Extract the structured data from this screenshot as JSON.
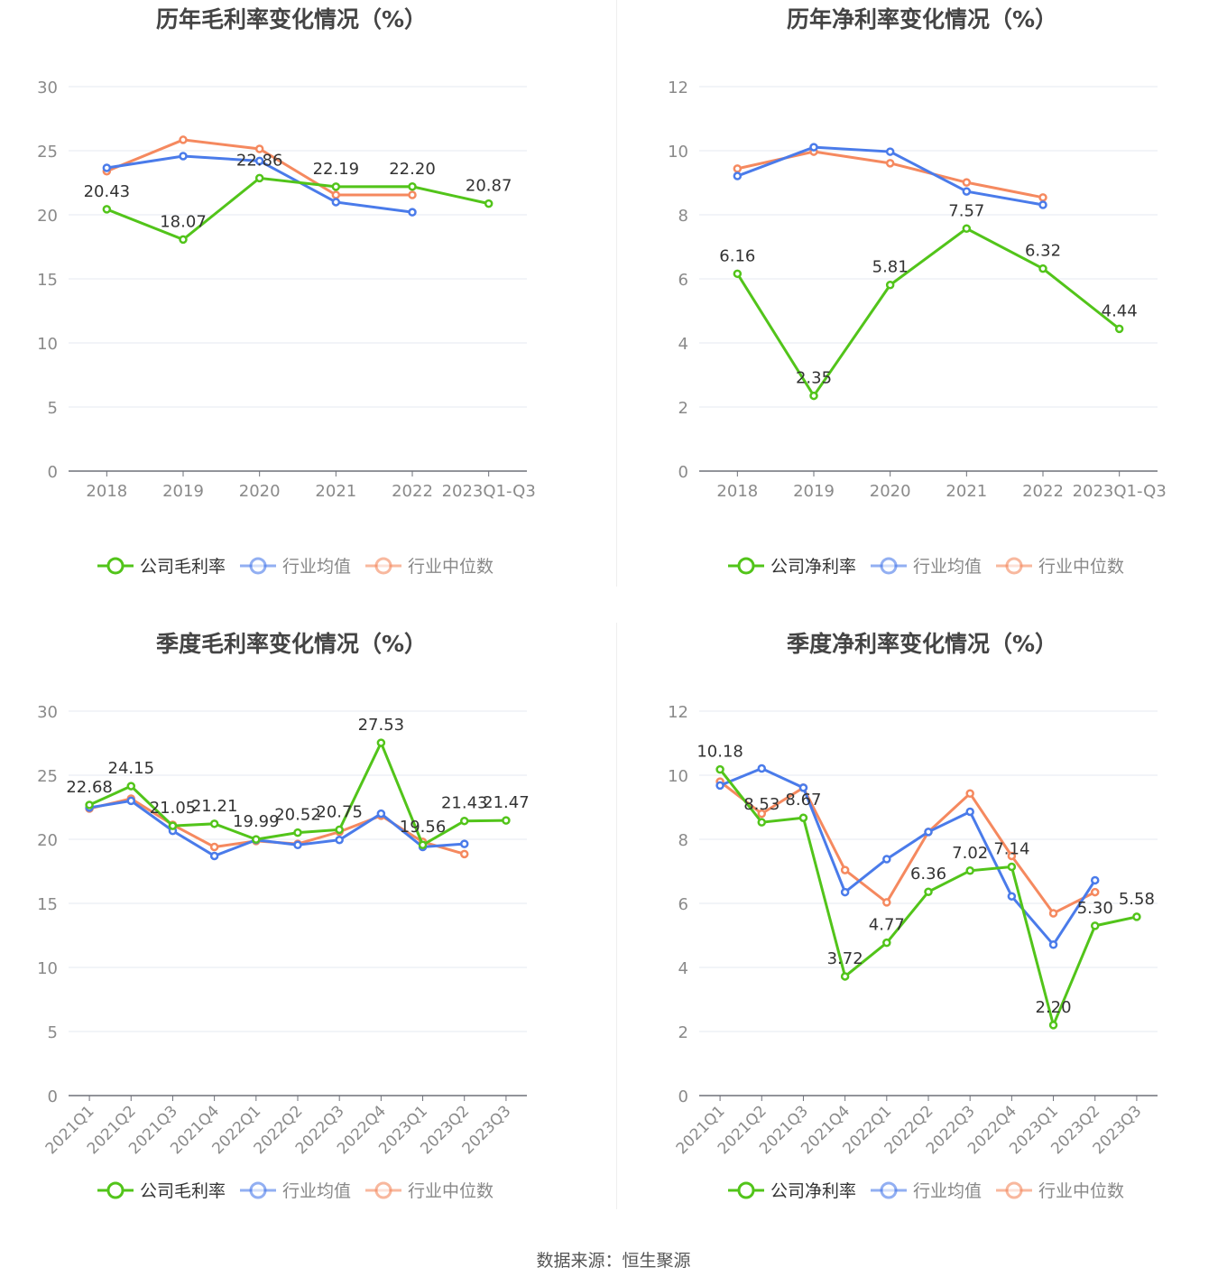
{
  "colors": {
    "company": "#52c41a",
    "mean": "#4a7bea",
    "median": "#f5895f",
    "grid": "#e6e8f0",
    "axis": "#6e7079",
    "tick": "#8a8a8a"
  },
  "source": "数据来源：恒生聚源",
  "chart_data": [
    {
      "type": "line",
      "title": "历年毛利率变化情况（%）",
      "ylim": [
        0,
        30
      ],
      "yticks": [
        0,
        5,
        10,
        15,
        20,
        25,
        30
      ],
      "rotate_x": false,
      "categories": [
        "2018",
        "2019",
        "2020",
        "2021",
        "2022",
        "2023Q1-Q3"
      ],
      "series": [
        {
          "name": "公司毛利率",
          "key": "company",
          "values": [
            20.43,
            18.07,
            22.86,
            22.19,
            22.2,
            20.87
          ],
          "labels": [
            "20.43",
            "18.07",
            "22.86",
            "22.19",
            "22.20",
            "20.87"
          ]
        },
        {
          "name": "行业均值",
          "key": "mean",
          "values": [
            23.66,
            24.58,
            24.2,
            20.99,
            20.2,
            null
          ]
        },
        {
          "name": "行业中位数",
          "key": "median",
          "values": [
            23.4,
            25.85,
            25.14,
            21.55,
            21.55,
            null
          ]
        }
      ]
    },
    {
      "type": "line",
      "title": "历年净利率变化情况（%）",
      "ylim": [
        0,
        12
      ],
      "yticks": [
        0,
        2,
        4,
        6,
        8,
        10,
        12
      ],
      "rotate_x": false,
      "categories": [
        "2018",
        "2019",
        "2020",
        "2021",
        "2022",
        "2023Q1-Q3"
      ],
      "series": [
        {
          "name": "公司净利率",
          "key": "company",
          "values": [
            6.16,
            2.35,
            5.81,
            7.57,
            6.32,
            4.44
          ],
          "labels": [
            "6.16",
            "2.35",
            "5.81",
            "7.57",
            "6.32",
            "4.44"
          ]
        },
        {
          "name": "行业均值",
          "key": "mean",
          "values": [
            9.21,
            10.11,
            9.97,
            8.73,
            8.31,
            null
          ]
        },
        {
          "name": "行业中位数",
          "key": "median",
          "values": [
            9.44,
            9.97,
            9.61,
            9.01,
            8.54,
            null
          ]
        }
      ]
    },
    {
      "type": "line",
      "title": "季度毛利率变化情况（%）",
      "ylim": [
        0,
        30
      ],
      "yticks": [
        0,
        5,
        10,
        15,
        20,
        25,
        30
      ],
      "rotate_x": true,
      "categories": [
        "2021Q1",
        "2021Q2",
        "2021Q3",
        "2021Q4",
        "2022Q1",
        "2022Q2",
        "2022Q3",
        "2022Q4",
        "2023Q1",
        "2023Q2",
        "2023Q3"
      ],
      "series": [
        {
          "name": "公司毛利率",
          "key": "company",
          "values": [
            22.68,
            24.15,
            21.05,
            21.21,
            19.99,
            20.52,
            20.75,
            27.53,
            19.56,
            21.43,
            21.47
          ],
          "labels": [
            "22.68",
            "24.15",
            "21.05",
            "21.21",
            "19.99",
            "20.52",
            "20.75",
            "27.53",
            "19.56",
            "21.43",
            "21.47"
          ]
        },
        {
          "name": "行业均值",
          "key": "mean",
          "values": [
            22.47,
            23.0,
            20.66,
            18.7,
            19.95,
            19.56,
            19.95,
            22.0,
            19.4,
            19.64,
            null
          ]
        },
        {
          "name": "行业中位数",
          "key": "median",
          "values": [
            22.39,
            23.17,
            21.13,
            19.4,
            19.87,
            19.64,
            20.58,
            21.84,
            19.8,
            18.85,
            null
          ]
        }
      ]
    },
    {
      "type": "line",
      "title": "季度净利率变化情况（%）",
      "ylim": [
        0,
        12
      ],
      "yticks": [
        0,
        2,
        4,
        6,
        8,
        10,
        12
      ],
      "rotate_x": true,
      "categories": [
        "2021Q1",
        "2021Q2",
        "2021Q3",
        "2021Q4",
        "2022Q1",
        "2022Q2",
        "2022Q3",
        "2022Q4",
        "2023Q1",
        "2023Q2",
        "2023Q3"
      ],
      "series": [
        {
          "name": "公司净利率",
          "key": "company",
          "values": [
            10.18,
            8.53,
            8.67,
            3.72,
            4.77,
            6.36,
            7.02,
            7.14,
            2.2,
            5.3,
            5.58
          ],
          "labels": [
            "10.18",
            "8.53",
            "8.67",
            "3.72",
            "4.77",
            "6.36",
            "7.02",
            "7.14",
            "2.20",
            "5.30",
            "5.58"
          ]
        },
        {
          "name": "行业均值",
          "key": "mean",
          "values": [
            9.68,
            10.21,
            9.61,
            6.35,
            7.38,
            8.23,
            8.86,
            6.22,
            4.71,
            6.72,
            null
          ]
        },
        {
          "name": "行业中位数",
          "key": "median",
          "values": [
            9.8,
            8.8,
            9.61,
            7.04,
            6.03,
            8.23,
            9.43,
            7.48,
            5.69,
            6.35,
            null
          ]
        }
      ]
    }
  ]
}
